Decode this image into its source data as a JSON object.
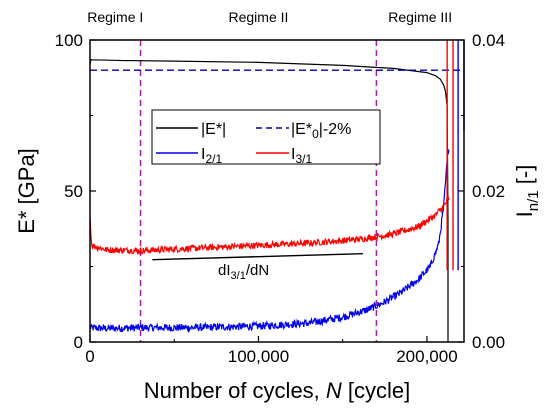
{
  "chart_data": {
    "type": "line",
    "title": "",
    "xlabel": {
      "main": "Number of cycles, ",
      "var": "N",
      "unit": " [cycle]"
    },
    "ylabel_left": "E* [GPa]",
    "ylabel_right": {
      "base": "I",
      "sub": "n/1",
      "unit": " [-]"
    },
    "xlim": [
      0,
      222000
    ],
    "ylim_left": [
      0,
      100
    ],
    "ylim_right": [
      0,
      0.04
    ],
    "x_ticks": [
      {
        "v": 0,
        "label": "0"
      },
      {
        "v": 100000,
        "label": "100,000"
      },
      {
        "v": 200000,
        "label": "200,000"
      }
    ],
    "y_ticks_left": [
      {
        "v": 0,
        "label": "0"
      },
      {
        "v": 50,
        "label": "50"
      },
      {
        "v": 100,
        "label": "100"
      }
    ],
    "y_ticks_right": [
      {
        "v": 0,
        "label": "0.00"
      },
      {
        "v": 0.02,
        "label": "0.02"
      },
      {
        "v": 0.04,
        "label": "0.04"
      }
    ],
    "regimes": [
      {
        "label": "Regime I",
        "label_x": 15000
      },
      {
        "label": "Regime II",
        "label_x": 100000
      },
      {
        "label": "Regime III",
        "label_x": 196000
      }
    ],
    "regime_boundaries": [
      30000,
      170000
    ],
    "series": [
      {
        "name": "|E*|",
        "axis": "left",
        "color": "#000000",
        "style": "solid",
        "x": [
          0,
          500,
          2000,
          5000,
          20000,
          50000,
          100000,
          150000,
          180000,
          200000,
          205000,
          208000,
          210000,
          211000,
          212000,
          212500,
          212500
        ],
        "y": [
          92,
          93.5,
          93.4,
          93.4,
          93.2,
          93.0,
          92.6,
          91.6,
          90.6,
          89.2,
          88.2,
          87.0,
          85.0,
          83.0,
          78.0,
          40.0,
          0
        ]
      },
      {
        "name": "|E*0|-2%",
        "axis": "left",
        "color": "#0000aa",
        "style": "dashed",
        "x": [
          0,
          222000
        ],
        "y": [
          90,
          90
        ]
      },
      {
        "name": "I2/1",
        "axis": "right",
        "color": "#0000ee",
        "style": "solid",
        "x": [
          0,
          10000,
          30000,
          60000,
          100000,
          130000,
          150000,
          165000,
          175000,
          185000,
          195000,
          202000,
          207000,
          210000,
          212000,
          213000
        ],
        "y": [
          0.0019,
          0.0018,
          0.0019,
          0.0019,
          0.0021,
          0.0025,
          0.0033,
          0.0043,
          0.0053,
          0.0066,
          0.0083,
          0.01,
          0.013,
          0.018,
          0.024,
          0.026
        ]
      },
      {
        "name": "I3/1",
        "axis": "right",
        "color": "#ff0000",
        "style": "solid",
        "x": [
          0,
          1000,
          10000,
          30000,
          60000,
          100000,
          130000,
          160000,
          180000,
          195000,
          205000,
          210000,
          212500,
          213000
        ],
        "y": [
          0.0165,
          0.0128,
          0.0122,
          0.0121,
          0.0124,
          0.0128,
          0.0131,
          0.0136,
          0.0143,
          0.0153,
          0.0168,
          0.018,
          0.0188,
          0.019
        ]
      }
    ],
    "failure_lines": [
      {
        "x": 212000,
        "color": "#ff0000",
        "y_from": 0.04,
        "y_to": 0.0095,
        "axis": "right"
      },
      {
        "x": 215500,
        "color": "#ff0000",
        "y_from": 0.04,
        "y_to": 0.0095,
        "axis": "right"
      },
      {
        "x": 218500,
        "color": "#0000ee",
        "y_from": 0.04,
        "y_to": 0.0095,
        "axis": "right"
      },
      {
        "x": 222000,
        "color": "#0000ee",
        "y_from": 0.04,
        "y_to": 0.0281,
        "axis": "right"
      }
    ],
    "legend": [
      {
        "key": "|E*|",
        "text": "|E*|",
        "color": "#000000",
        "dashed": false
      },
      {
        "key": "|E*0|-2%",
        "text_parts": [
          "|E*",
          "0",
          "|-2%"
        ],
        "color": "#0000aa",
        "dashed": true
      },
      {
        "key": "I2/1",
        "text_parts": [
          "I",
          "2/1"
        ],
        "color": "#0000ee",
        "dashed": false
      },
      {
        "key": "I3/1",
        "text_parts": [
          "I",
          "3/1"
        ],
        "color": "#ff0000",
        "dashed": false
      }
    ],
    "legend_position": "center",
    "annotation": {
      "text_parts": [
        "dI",
        "3/1",
        "/dN"
      ],
      "slope_line": {
        "x": [
          37000,
          162000
        ],
        "y": [
          0.0109,
          0.0117
        ],
        "axis": "right"
      }
    },
    "grid": false
  }
}
